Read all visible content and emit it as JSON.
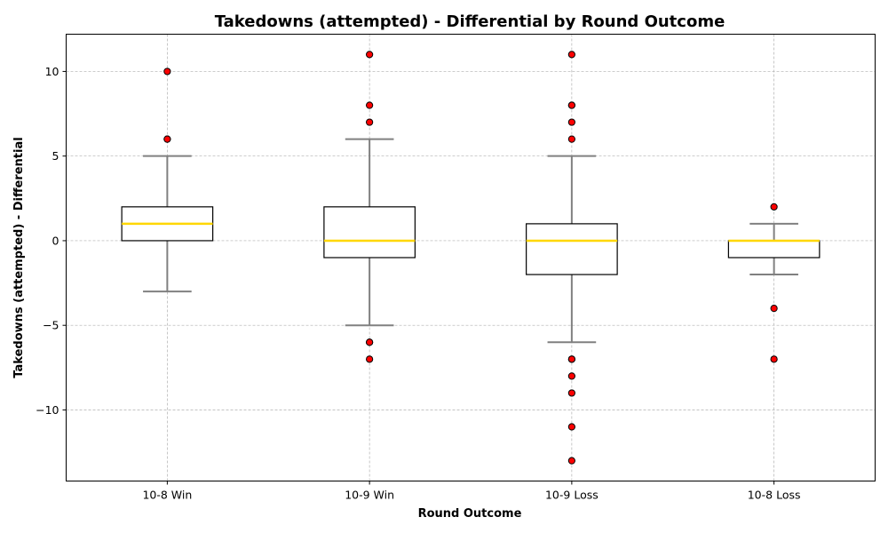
{
  "chart_data": {
    "type": "box",
    "title": "Takedowns (attempted) - Differential by Round Outcome",
    "xlabel": "Round Outcome",
    "ylabel": "Takedowns (attempted) - Differential",
    "ylim": [
      -14.2,
      12.2
    ],
    "yticks": [
      10,
      5,
      0,
      -5,
      -10
    ],
    "ytick_labels": [
      "10",
      "5",
      "0",
      "−5",
      "−10"
    ],
    "grid": true,
    "categories": [
      "10-8 Win",
      "10-9 Win",
      "10-9 Loss",
      "10-8 Loss"
    ],
    "boxes": [
      {
        "category": "10-8 Win",
        "whisker_low": -3,
        "q1": 0,
        "median": 1,
        "q3": 2,
        "whisker_high": 5,
        "outliers": [
          10,
          6,
          6
        ]
      },
      {
        "category": "10-9 Win",
        "whisker_low": -5,
        "q1": -1,
        "median": 0,
        "q3": 2,
        "whisker_high": 6,
        "outliers": [
          11,
          8,
          7,
          -6,
          -6,
          -7
        ]
      },
      {
        "category": "10-9 Loss",
        "whisker_low": -6,
        "q1": -2,
        "median": 0,
        "q3": 1,
        "whisker_high": 5,
        "outliers": [
          11,
          8,
          8,
          7,
          6,
          -7,
          -7,
          -8,
          -9,
          -11,
          -13
        ]
      },
      {
        "category": "10-8 Loss",
        "whisker_low": -2,
        "q1": -1,
        "median": 0,
        "q3": 0,
        "whisker_high": 1,
        "outliers": [
          2,
          -4,
          -7
        ]
      }
    ],
    "colors": {
      "box_edge": "#000000",
      "box_fill": "#ffffff",
      "median": "#ffd700",
      "whisker": "#808080",
      "outlier_fill": "#ff0000",
      "outlier_edge": "#000000",
      "grid": "#b0b0b0"
    }
  }
}
